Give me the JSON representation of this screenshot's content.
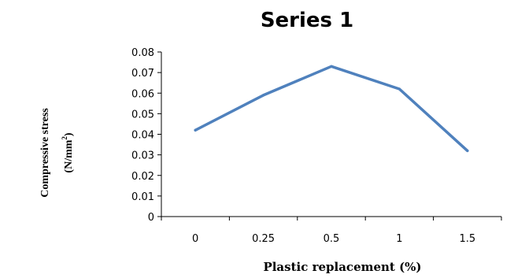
{
  "chart_data": {
    "type": "line",
    "title": "Series 1",
    "xlabel": "Plastic replacement (%)",
    "ylabel_line1": "Compressive stress",
    "ylabel_line2": "(N/mm",
    "ylabel_sup": "2",
    "ylabel_close": ")",
    "categories": [
      "0",
      "0.25",
      "0.5",
      "1",
      "1.5"
    ],
    "series": [
      {
        "values": [
          0.042,
          0.059,
          0.073,
          0.062,
          0.032
        ]
      }
    ],
    "ylim": [
      0,
      0.08
    ],
    "yticks": [
      "0",
      "0.01",
      "0.02",
      "0.03",
      "0.04",
      "0.05",
      "0.06",
      "0.07",
      "0.08"
    ],
    "grid": false,
    "legend": "none",
    "line_color": "#4f81bd"
  }
}
